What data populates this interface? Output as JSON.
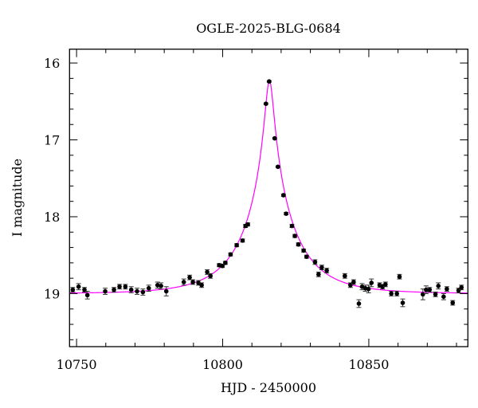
{
  "chart_data": {
    "type": "scatter",
    "title": "OGLE-2025-BLG-0684",
    "xlabel": "HJD - 2450000",
    "ylabel": "I magnitude",
    "xlim": [
      10747.6,
      10883.9
    ],
    "ylim": [
      19.69,
      15.82
    ],
    "y_inverted": true,
    "xticks": [
      10750,
      10800,
      10850
    ],
    "xtick_labels": [
      "10750",
      "10800",
      "10850"
    ],
    "x_minor_step": 10,
    "yticks": [
      16,
      17,
      18,
      19
    ],
    "ytick_labels": [
      "16",
      "17",
      "18",
      "19"
    ],
    "y_minor_step": 0.2,
    "grid": false,
    "colors": {
      "points": "#000000",
      "errorbars": "#333333",
      "model": "#ff00ff"
    },
    "model": {
      "type": "point-lens microlensing fit",
      "t0": 10816.0,
      "u0": 0.078,
      "tE": 17.5,
      "baseline_mag": 19.0
    },
    "points": [
      [
        10748.7,
        18.95,
        0.03
      ],
      [
        10750.7,
        18.91,
        0.04
      ],
      [
        10752.7,
        18.95,
        0.03
      ],
      [
        10753.7,
        19.02,
        0.05
      ],
      [
        10759.8,
        18.97,
        0.04
      ],
      [
        10762.8,
        18.95,
        0.03
      ],
      [
        10764.7,
        18.91,
        0.03
      ],
      [
        10766.7,
        18.91,
        0.03
      ],
      [
        10768.7,
        18.95,
        0.04
      ],
      [
        10770.7,
        18.97,
        0.04
      ],
      [
        10772.7,
        18.98,
        0.04
      ],
      [
        10774.7,
        18.93,
        0.04
      ],
      [
        10777.7,
        18.89,
        0.04
      ],
      [
        10778.9,
        18.9,
        0.04
      ],
      [
        10780.7,
        18.97,
        0.06
      ],
      [
        10786.7,
        18.85,
        0.04
      ],
      [
        10788.7,
        18.79,
        0.03
      ],
      [
        10789.8,
        18.85,
        0.03
      ],
      [
        10791.7,
        18.86,
        0.03
      ],
      [
        10792.8,
        18.89,
        0.03
      ],
      [
        10794.7,
        18.72,
        0.03
      ],
      [
        10795.8,
        18.77,
        0.03
      ],
      [
        10798.8,
        18.63,
        0.02
      ],
      [
        10799.9,
        18.64,
        0.02
      ],
      [
        10800.9,
        18.6,
        0.02
      ],
      [
        10802.7,
        18.49,
        0.02
      ],
      [
        10804.8,
        18.37,
        0.02
      ],
      [
        10806.8,
        18.31,
        0.02
      ],
      [
        10807.8,
        18.12,
        0.02
      ],
      [
        10808.6,
        18.1,
        0.02
      ],
      [
        10814.8,
        16.53,
        0.01
      ],
      [
        10815.9,
        16.24,
        0.01
      ],
      [
        10817.8,
        16.98,
        0.01
      ],
      [
        10818.9,
        17.35,
        0.01
      ],
      [
        10820.8,
        17.72,
        0.015
      ],
      [
        10821.7,
        17.96,
        0.015
      ],
      [
        10823.7,
        18.12,
        0.02
      ],
      [
        10824.7,
        18.25,
        0.02
      ],
      [
        10825.9,
        18.36,
        0.02
      ],
      [
        10827.7,
        18.44,
        0.02
      ],
      [
        10828.7,
        18.52,
        0.02
      ],
      [
        10831.6,
        18.59,
        0.03
      ],
      [
        10832.8,
        18.75,
        0.03
      ],
      [
        10833.9,
        18.66,
        0.03
      ],
      [
        10835.6,
        18.7,
        0.03
      ],
      [
        10841.8,
        18.77,
        0.03
      ],
      [
        10843.7,
        18.89,
        0.03
      ],
      [
        10844.8,
        18.85,
        0.03
      ],
      [
        10846.6,
        19.13,
        0.05
      ],
      [
        10847.7,
        18.91,
        0.04
      ],
      [
        10848.8,
        18.93,
        0.04
      ],
      [
        10849.9,
        18.94,
        0.05
      ],
      [
        10850.9,
        18.86,
        0.05
      ],
      [
        10853.7,
        18.89,
        0.03
      ],
      [
        10854.7,
        18.91,
        0.03
      ],
      [
        10855.7,
        18.88,
        0.03
      ],
      [
        10857.7,
        19.0,
        0.03
      ],
      [
        10859.6,
        19.0,
        0.03
      ],
      [
        10860.5,
        18.78,
        0.03
      ],
      [
        10861.6,
        19.12,
        0.05
      ],
      [
        10868.5,
        19.01,
        0.07
      ],
      [
        10869.6,
        18.95,
        0.05
      ],
      [
        10870.8,
        18.95,
        0.03
      ],
      [
        10872.8,
        19.01,
        0.03
      ],
      [
        10873.8,
        18.9,
        0.04
      ],
      [
        10875.6,
        19.04,
        0.04
      ],
      [
        10876.7,
        18.94,
        0.03
      ],
      [
        10878.7,
        19.12,
        0.03
      ],
      [
        10880.7,
        18.96,
        0.03
      ],
      [
        10881.7,
        18.92,
        0.03
      ]
    ]
  }
}
